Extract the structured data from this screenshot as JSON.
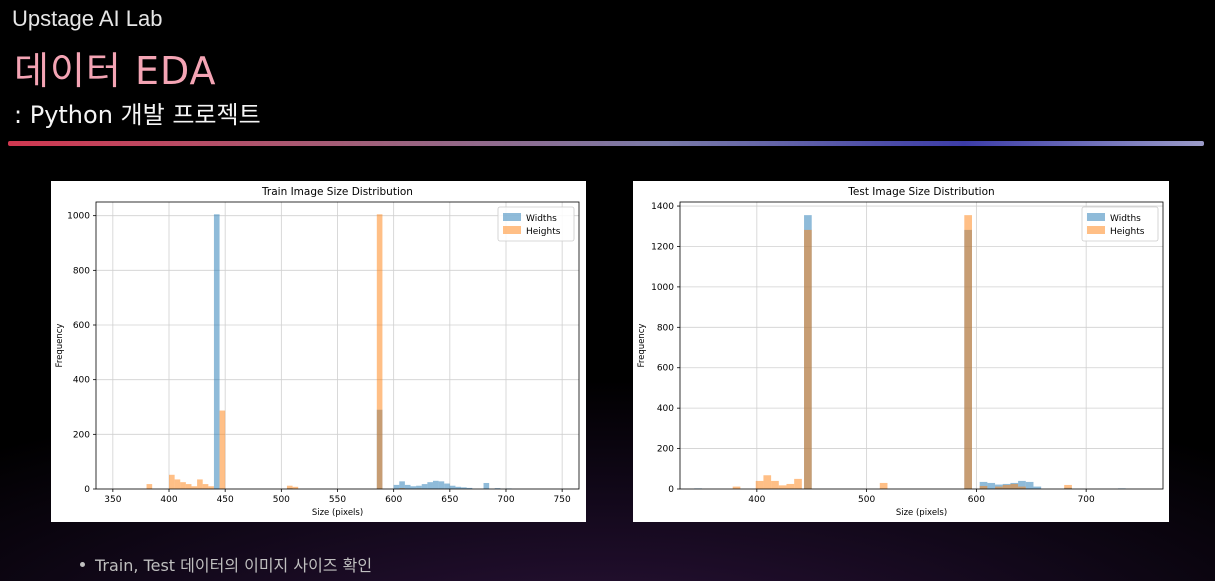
{
  "header": {
    "brand": "Upstage AI Lab",
    "title": "데이터 EDA",
    "subtitle": ": Python 개발 프로젝트"
  },
  "footer": {
    "bullet": "Train, Test 데이터의 이미지 사이즈 확인"
  },
  "colors": {
    "title_pink": "#f4a4b4",
    "widths": "#1f77b4",
    "heights": "#ff7f0e"
  },
  "chart_data": [
    {
      "type": "bar",
      "title": "Train Image Size Distribution",
      "xlabel": "Size (pixels)",
      "ylabel": "Frequency",
      "xlim": [
        335,
        765
      ],
      "ylim": [
        0,
        1050
      ],
      "xticks": [
        350,
        400,
        450,
        500,
        550,
        600,
        650,
        700,
        750
      ],
      "yticks": [
        0,
        200,
        400,
        600,
        800,
        1000
      ],
      "grid": true,
      "legend_position": "top-right",
      "bin_width": 5,
      "series": [
        {
          "name": "Widths",
          "color": "#1f77b4",
          "x": [
            440,
            505,
            585,
            600,
            605,
            610,
            615,
            620,
            625,
            630,
            635,
            640,
            645,
            650,
            655,
            660,
            665,
            680,
            690,
            700
          ],
          "values": [
            1005,
            3,
            290,
            15,
            28,
            15,
            10,
            12,
            18,
            25,
            30,
            28,
            20,
            12,
            8,
            6,
            4,
            22,
            3,
            2
          ]
        },
        {
          "name": "Heights",
          "color": "#ff7f0e",
          "x": [
            380,
            400,
            405,
            410,
            415,
            420,
            425,
            430,
            435,
            445,
            505,
            510,
            585,
            605,
            620
          ],
          "values": [
            18,
            52,
            35,
            25,
            18,
            10,
            35,
            18,
            10,
            287,
            12,
            8,
            1005,
            3,
            2
          ]
        }
      ]
    },
    {
      "type": "bar",
      "title": "Test Image Size Distribution",
      "xlabel": "Size (pixels)",
      "ylabel": "Frequency",
      "xlim": [
        330,
        770
      ],
      "ylim": [
        0,
        1420
      ],
      "xticks": [
        400,
        500,
        600,
        700
      ],
      "yticks": [
        0,
        200,
        400,
        600,
        800,
        1000,
        1200,
        1400
      ],
      "grid": true,
      "legend_position": "top-right",
      "bin_width": 7,
      "series": [
        {
          "name": "Widths",
          "color": "#1f77b4",
          "x": [
            343,
            443,
            589,
            603,
            610,
            617,
            624,
            631,
            638,
            645,
            652,
            680,
            729
          ],
          "values": [
            3,
            1355,
            1282,
            35,
            30,
            22,
            25,
            30,
            40,
            35,
            12,
            6,
            3
          ]
        },
        {
          "name": "Heights",
          "color": "#ff7f0e",
          "x": [
            378,
            399,
            406,
            413,
            420,
            427,
            434,
            443,
            512,
            589,
            603,
            617,
            624,
            631,
            638,
            680
          ],
          "values": [
            12,
            40,
            68,
            40,
            18,
            25,
            50,
            1282,
            30,
            1355,
            15,
            12,
            20,
            25,
            12,
            20
          ]
        }
      ]
    }
  ]
}
